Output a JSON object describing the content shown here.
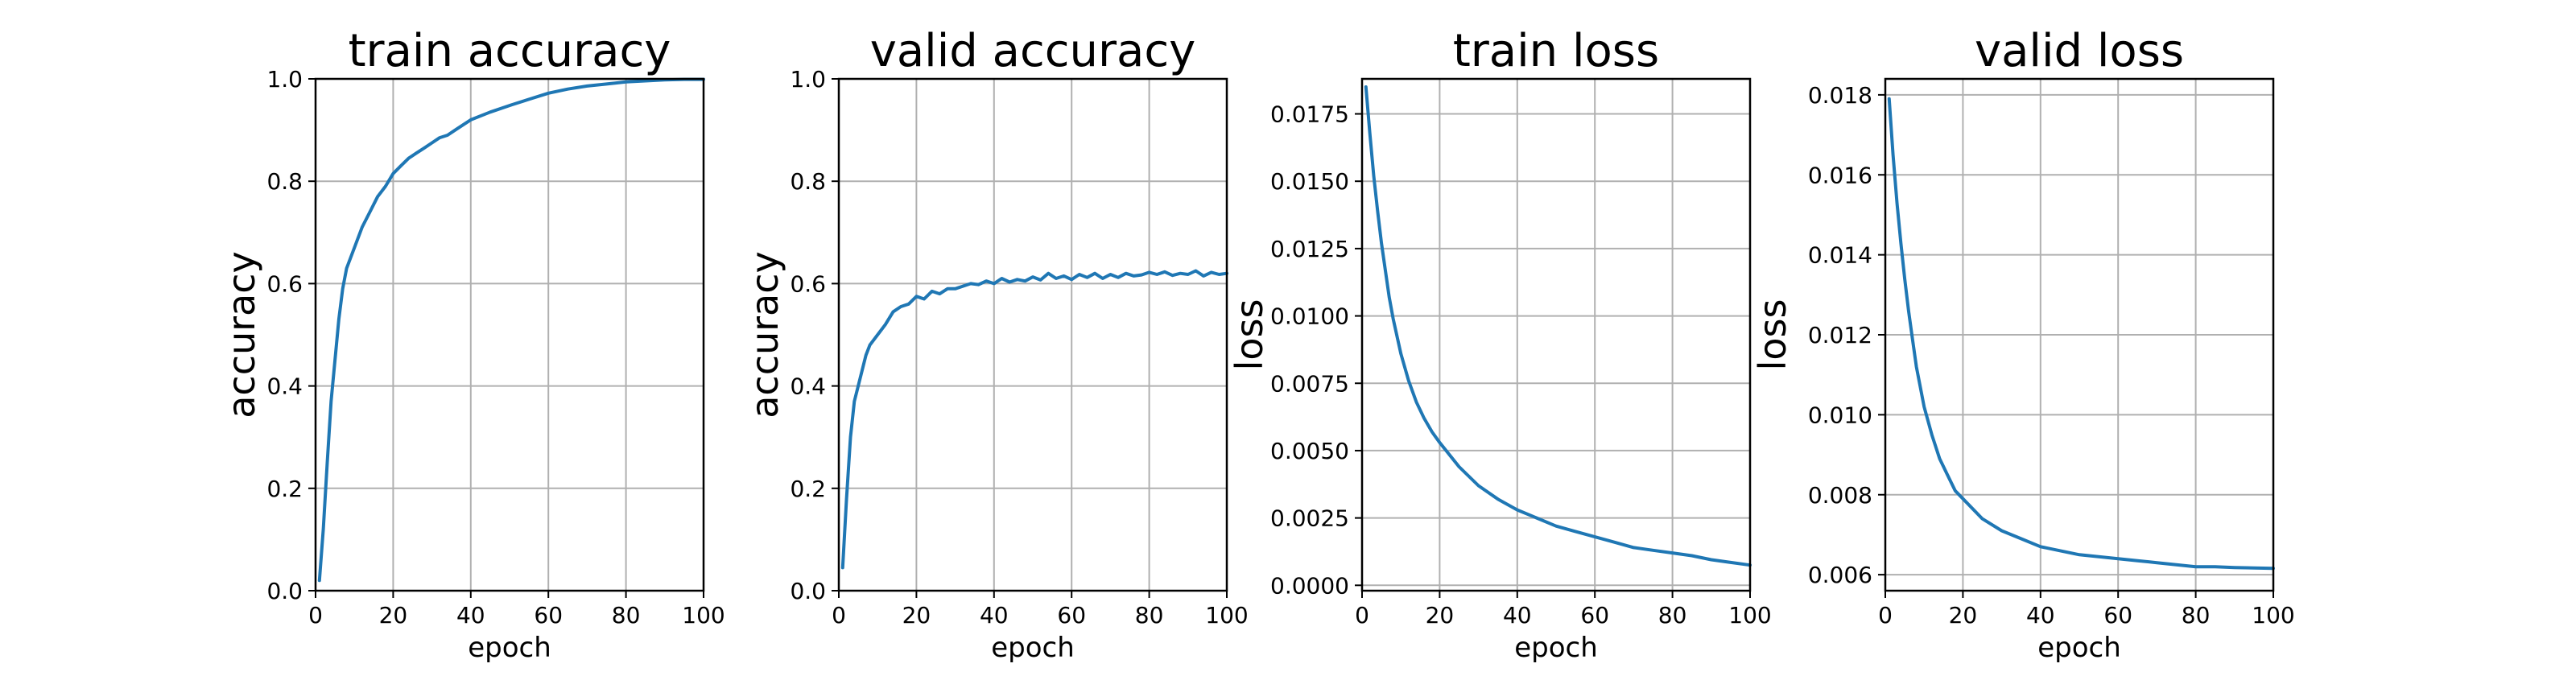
{
  "chart_data": [
    {
      "type": "line",
      "title": "train accuracy",
      "xlabel": "epoch",
      "ylabel": "accuracy",
      "xlim": [
        0,
        100
      ],
      "ylim": [
        0,
        1.0
      ],
      "xticks": [
        0,
        20,
        40,
        60,
        80,
        100
      ],
      "xtick_labels": [
        "0",
        "20",
        "40",
        "60",
        "80",
        "100"
      ],
      "yticks": [
        0,
        0.2,
        0.4,
        0.6,
        0.8,
        1.0
      ],
      "ytick_labels": [
        "0.0",
        "0.2",
        "0.4",
        "0.6",
        "0.8",
        "1.0"
      ],
      "grid": true,
      "color": "#1f77b4",
      "series": [
        {
          "x": [
            1,
            2,
            3,
            4,
            5,
            6,
            7,
            8,
            10,
            12,
            14,
            16,
            18,
            20,
            22,
            24,
            26,
            28,
            30,
            32,
            34,
            36,
            38,
            40,
            45,
            50,
            55,
            60,
            65,
            70,
            75,
            80,
            85,
            90,
            95,
            100
          ],
          "values": [
            0.02,
            0.12,
            0.25,
            0.37,
            0.45,
            0.53,
            0.59,
            0.63,
            0.67,
            0.71,
            0.74,
            0.77,
            0.79,
            0.815,
            0.83,
            0.845,
            0.855,
            0.865,
            0.875,
            0.885,
            0.89,
            0.9,
            0.91,
            0.92,
            0.935,
            0.948,
            0.96,
            0.972,
            0.98,
            0.986,
            0.99,
            0.994,
            0.996,
            0.998,
            0.999,
            0.999
          ]
        }
      ]
    },
    {
      "type": "line",
      "title": "valid accuracy",
      "xlabel": "epoch",
      "ylabel": "accuracy",
      "xlim": [
        0,
        100
      ],
      "ylim": [
        0,
        1.0
      ],
      "xticks": [
        0,
        20,
        40,
        60,
        80,
        100
      ],
      "xtick_labels": [
        "0",
        "20",
        "40",
        "60",
        "80",
        "100"
      ],
      "yticks": [
        0,
        0.2,
        0.4,
        0.6,
        0.8,
        1.0
      ],
      "ytick_labels": [
        "0.0",
        "0.2",
        "0.4",
        "0.6",
        "0.8",
        "1.0"
      ],
      "grid": true,
      "color": "#1f77b4",
      "series": [
        {
          "x": [
            1,
            2,
            3,
            4,
            5,
            6,
            7,
            8,
            10,
            12,
            14,
            16,
            18,
            20,
            22,
            24,
            26,
            28,
            30,
            32,
            34,
            36,
            38,
            40,
            42,
            44,
            46,
            48,
            50,
            52,
            54,
            56,
            58,
            60,
            62,
            64,
            66,
            68,
            70,
            72,
            74,
            76,
            78,
            80,
            82,
            84,
            86,
            88,
            90,
            92,
            94,
            96,
            98,
            100
          ],
          "values": [
            0.045,
            0.18,
            0.3,
            0.37,
            0.4,
            0.43,
            0.46,
            0.48,
            0.5,
            0.52,
            0.545,
            0.555,
            0.56,
            0.575,
            0.57,
            0.585,
            0.58,
            0.59,
            0.59,
            0.595,
            0.6,
            0.598,
            0.605,
            0.6,
            0.61,
            0.603,
            0.608,
            0.605,
            0.613,
            0.607,
            0.62,
            0.61,
            0.615,
            0.608,
            0.618,
            0.612,
            0.62,
            0.61,
            0.618,
            0.612,
            0.62,
            0.615,
            0.617,
            0.622,
            0.618,
            0.623,
            0.616,
            0.62,
            0.618,
            0.625,
            0.615,
            0.622,
            0.618,
            0.62
          ]
        }
      ]
    },
    {
      "type": "line",
      "title": "train loss",
      "xlabel": "epoch",
      "ylabel": "loss",
      "xlim": [
        0,
        100
      ],
      "ylim": [
        -0.0002,
        0.0188
      ],
      "xticks": [
        0,
        20,
        40,
        60,
        80,
        100
      ],
      "xtick_labels": [
        "0",
        "20",
        "40",
        "60",
        "80",
        "100"
      ],
      "yticks": [
        0,
        0.0025,
        0.005,
        0.0075,
        0.01,
        0.0125,
        0.015,
        0.0175
      ],
      "ytick_labels": [
        "0.0000",
        "0.0025",
        "0.0050",
        "0.0075",
        "0.0100",
        "0.0125",
        "0.0150",
        "0.0175"
      ],
      "grid": true,
      "color": "#1f77b4",
      "series": [
        {
          "x": [
            1,
            2,
            3,
            4,
            5,
            6,
            7,
            8,
            10,
            12,
            14,
            16,
            18,
            20,
            25,
            30,
            35,
            40,
            45,
            50,
            55,
            60,
            65,
            70,
            75,
            80,
            85,
            90,
            95,
            100
          ],
          "values": [
            0.0185,
            0.0168,
            0.0152,
            0.0139,
            0.0127,
            0.0117,
            0.0107,
            0.0099,
            0.0086,
            0.0076,
            0.0068,
            0.0062,
            0.0057,
            0.0053,
            0.0044,
            0.0037,
            0.0032,
            0.0028,
            0.0025,
            0.0022,
            0.002,
            0.0018,
            0.0016,
            0.0014,
            0.0013,
            0.0012,
            0.0011,
            0.00095,
            0.00085,
            0.00075
          ]
        }
      ]
    },
    {
      "type": "line",
      "title": "valid loss",
      "xlabel": "epoch",
      "ylabel": "loss",
      "xlim": [
        0,
        100
      ],
      "ylim": [
        0.0056,
        0.0184
      ],
      "xticks": [
        0,
        20,
        40,
        60,
        80,
        100
      ],
      "xtick_labels": [
        "0",
        "20",
        "40",
        "60",
        "80",
        "100"
      ],
      "yticks": [
        0.006,
        0.008,
        0.01,
        0.012,
        0.014,
        0.016,
        0.018
      ],
      "ytick_labels": [
        "0.006",
        "0.008",
        "0.010",
        "0.012",
        "0.014",
        "0.016",
        "0.018"
      ],
      "grid": true,
      "color": "#1f77b4",
      "series": [
        {
          "x": [
            1,
            2,
            3,
            4,
            5,
            6,
            7,
            8,
            10,
            12,
            14,
            16,
            18,
            20,
            25,
            30,
            35,
            40,
            45,
            50,
            55,
            60,
            65,
            70,
            75,
            80,
            85,
            90,
            95,
            100
          ],
          "values": [
            0.0179,
            0.0165,
            0.0153,
            0.0143,
            0.0134,
            0.0126,
            0.0119,
            0.0112,
            0.0102,
            0.0095,
            0.0089,
            0.0085,
            0.0081,
            0.0079,
            0.0074,
            0.0071,
            0.0069,
            0.0067,
            0.0066,
            0.0065,
            0.00645,
            0.0064,
            0.00635,
            0.0063,
            0.00625,
            0.0062,
            0.0062,
            0.00618,
            0.00617,
            0.00616
          ]
        }
      ]
    }
  ]
}
